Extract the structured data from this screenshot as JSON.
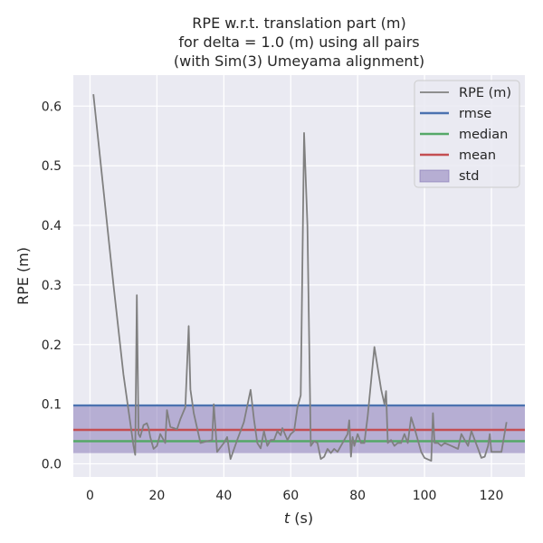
{
  "chart_data": {
    "type": "line",
    "title_lines": [
      "RPE w.r.t. translation part (m)",
      "for delta = 1.0 (m) using all pairs",
      "(with Sim(3) Umeyama alignment)"
    ],
    "xlabel": {
      "italic": "t",
      "rest": " (s)"
    },
    "ylabel": "RPE (m)",
    "xlim": [
      -5,
      130
    ],
    "ylim": [
      -0.022,
      0.652
    ],
    "xticks": [
      0,
      20,
      40,
      60,
      80,
      100,
      120
    ],
    "yticks": [
      0.0,
      0.1,
      0.2,
      0.3,
      0.4,
      0.5,
      0.6
    ],
    "ytick_labels": [
      "0.0",
      "0.1",
      "0.2",
      "0.3",
      "0.4",
      "0.5",
      "0.6"
    ],
    "grid": true,
    "legend_position": "top-right",
    "series": [
      {
        "name": "RPE (m)",
        "color": "#808080",
        "x": [
          1,
          4,
          7,
          10,
          12.5,
          13,
          13.5,
          14,
          14.5,
          15,
          16,
          17,
          17.5,
          18,
          19,
          20,
          21,
          22,
          22.5,
          23,
          24,
          25,
          26,
          27,
          28.5,
          29.5,
          30,
          31,
          33,
          35,
          36.5,
          37,
          38,
          40,
          41,
          42,
          44,
          46,
          48,
          49,
          50,
          51,
          52,
          53,
          54,
          55,
          56,
          57,
          57.5,
          59,
          60,
          61,
          62,
          63,
          64,
          65,
          66,
          67,
          68,
          69,
          70,
          71,
          72,
          73,
          74,
          75,
          77,
          77.5,
          78,
          78.5,
          79,
          80,
          81,
          82,
          83,
          85,
          87,
          88,
          88.5,
          89,
          90,
          91,
          92,
          93,
          94,
          95,
          96,
          97,
          98,
          99,
          100,
          102,
          102.5,
          103,
          104,
          105,
          106,
          108,
          110,
          111,
          112,
          113,
          114,
          115,
          116,
          117,
          118,
          119,
          119.5,
          120,
          121,
          122,
          123,
          124.5
        ],
        "y": [
          0.62,
          0.46,
          0.3,
          0.15,
          0.05,
          0.03,
          0.015,
          0.283,
          0.05,
          0.045,
          0.065,
          0.068,
          0.06,
          0.045,
          0.025,
          0.03,
          0.05,
          0.04,
          0.035,
          0.09,
          0.062,
          0.06,
          0.058,
          0.075,
          0.095,
          0.231,
          0.125,
          0.085,
          0.035,
          0.038,
          0.04,
          0.1,
          0.02,
          0.035,
          0.045,
          0.008,
          0.04,
          0.07,
          0.124,
          0.075,
          0.035,
          0.026,
          0.055,
          0.03,
          0.04,
          0.04,
          0.055,
          0.048,
          0.06,
          0.04,
          0.05,
          0.055,
          0.095,
          0.115,
          0.555,
          0.4,
          0.03,
          0.038,
          0.035,
          0.008,
          0.012,
          0.025,
          0.018,
          0.025,
          0.02,
          0.03,
          0.05,
          0.073,
          0.012,
          0.045,
          0.03,
          0.05,
          0.035,
          0.035,
          0.08,
          0.196,
          0.125,
          0.1,
          0.122,
          0.035,
          0.04,
          0.03,
          0.035,
          0.035,
          0.05,
          0.035,
          0.078,
          0.06,
          0.04,
          0.02,
          0.01,
          0.005,
          0.085,
          0.035,
          0.035,
          0.03,
          0.035,
          0.03,
          0.025,
          0.05,
          0.04,
          0.03,
          0.055,
          0.04,
          0.025,
          0.01,
          0.012,
          0.03,
          0.05,
          0.02,
          0.02,
          0.02,
          0.02,
          0.07
        ]
      },
      {
        "name": "rmse",
        "color": "#4c72b0",
        "value": 0.098
      },
      {
        "name": "median",
        "color": "#55a868",
        "value": 0.038
      },
      {
        "name": "mean",
        "color": "#c44e52",
        "value": 0.057
      },
      {
        "name": "std",
        "color": "#8172b3",
        "range": [
          0.018,
          0.096
        ]
      }
    ]
  }
}
